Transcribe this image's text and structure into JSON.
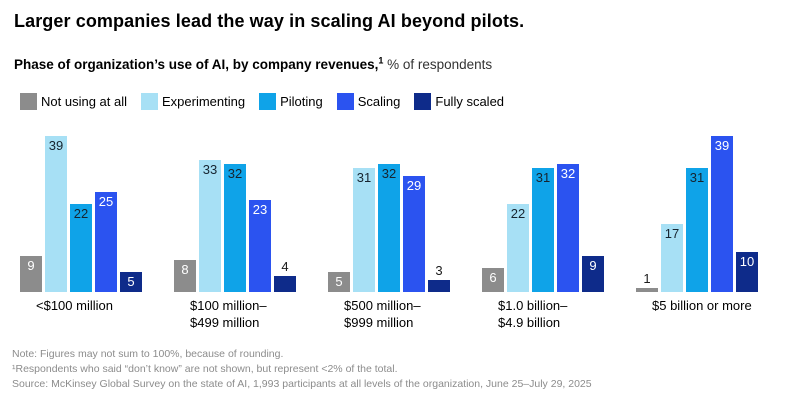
{
  "title": "Larger companies lead the way in scaling AI beyond pilots.",
  "subtitle": {
    "bold_text": "Phase of organization’s use of AI, by company revenues,",
    "superscript": "1",
    "regular_text": " % of respondents"
  },
  "legend": [
    {
      "label": "Not using at all",
      "color": "#8C8C8C"
    },
    {
      "label": "Experimenting",
      "color": "#A7E0F5"
    },
    {
      "label": "Piloting",
      "color": "#0FA3E8"
    },
    {
      "label": "Scaling",
      "color": "#2B53F0"
    },
    {
      "label": "Fully scaled",
      "color": "#0E2B8A"
    }
  ],
  "chart_data": {
    "type": "bar",
    "title": "Phase of organization’s use of AI, by company revenues",
    "unit": "% of respondents",
    "ylim": [
      0,
      39
    ],
    "grid": false,
    "legend_position": "top",
    "categories": [
      "<$100 million",
      "$100 million–\n$499 million",
      "$500 million–\n$999 million",
      "$1.0 billion–\n$4.9 billion",
      "$5 billion or more"
    ],
    "series": [
      {
        "name": "Not using at all",
        "color": "#8C8C8C",
        "value_color": "#ffffff",
        "values": [
          9,
          8,
          5,
          6,
          1
        ]
      },
      {
        "name": "Experimenting",
        "color": "#A7E0F5",
        "value_color": "#16242f",
        "values": [
          39,
          33,
          31,
          22,
          17
        ]
      },
      {
        "name": "Piloting",
        "color": "#0FA3E8",
        "value_color": "#16242f",
        "values": [
          22,
          32,
          32,
          31,
          31
        ]
      },
      {
        "name": "Scaling",
        "color": "#2B53F0",
        "value_color": "#ffffff",
        "values": [
          25,
          23,
          29,
          32,
          39
        ]
      },
      {
        "name": "Fully scaled",
        "color": "#0E2B8A",
        "value_color": "#ffffff",
        "values": [
          5,
          4,
          3,
          9,
          10
        ]
      }
    ]
  },
  "footnotes": [
    "Note: Figures may not sum to 100%, because of rounding.",
    "¹Respondents who said “don’t know” are not shown, but represent <2% of the total.",
    "Source: McKinsey Global Survey on the state of AI, 1,993 participants at all levels of the organization, June 25–July 29, 2025"
  ]
}
